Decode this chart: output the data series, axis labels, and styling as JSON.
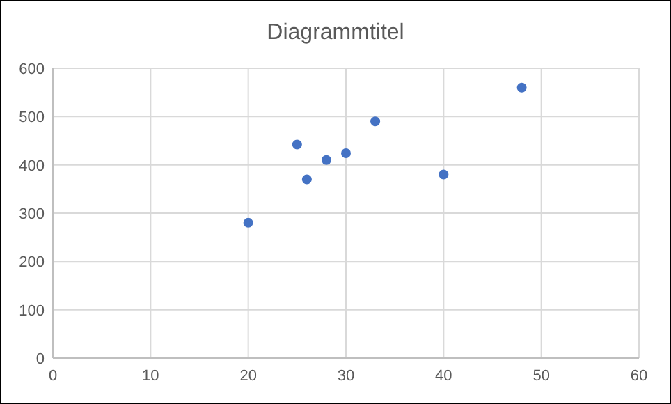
{
  "chart_data": {
    "type": "scatter",
    "title": "Diagrammtitel",
    "x": [
      20,
      25,
      26,
      28,
      30,
      33,
      40,
      48
    ],
    "values": [
      280,
      442,
      370,
      410,
      424,
      490,
      380,
      560
    ],
    "color": "#4472c4",
    "marker": "circle",
    "xlim": [
      0,
      60
    ],
    "xticks": [
      0,
      10,
      20,
      30,
      40,
      50,
      60
    ],
    "ylim": [
      0,
      600
    ],
    "yticks": [
      0,
      100,
      200,
      300,
      400,
      500,
      600
    ],
    "grid": true
  }
}
